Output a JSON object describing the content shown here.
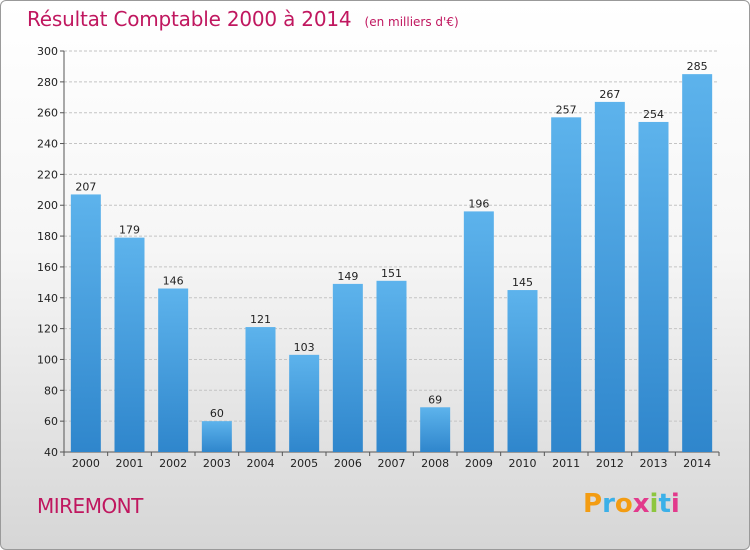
{
  "chart_data": {
    "type": "bar",
    "title": "Résultat Comptable 2000 à 2014",
    "subtitle": "(en milliers d'€)",
    "categories": [
      "2000",
      "2001",
      "2002",
      "2003",
      "2004",
      "2005",
      "2006",
      "2007",
      "2008",
      "2009",
      "2010",
      "2011",
      "2012",
      "2013",
      "2014"
    ],
    "values": [
      207,
      179,
      146,
      60,
      121,
      103,
      149,
      151,
      69,
      196,
      145,
      257,
      267,
      254,
      285
    ],
    "ylim": [
      40,
      300
    ],
    "yticks": [
      40,
      60,
      80,
      100,
      120,
      140,
      160,
      180,
      200,
      220,
      240,
      260,
      280,
      300
    ],
    "grid": true,
    "bar_color": "#4a9fe0"
  },
  "footer": {
    "commune": "MIREMONT",
    "brand": [
      "P",
      "r",
      "o",
      "x",
      "i",
      "t",
      "i"
    ],
    "brand_colors": [
      "#f39c12",
      "#3bb0e8",
      "#f39c12",
      "#e23a8c",
      "#8dc63f",
      "#3bb0e8",
      "#e23a8c"
    ]
  }
}
